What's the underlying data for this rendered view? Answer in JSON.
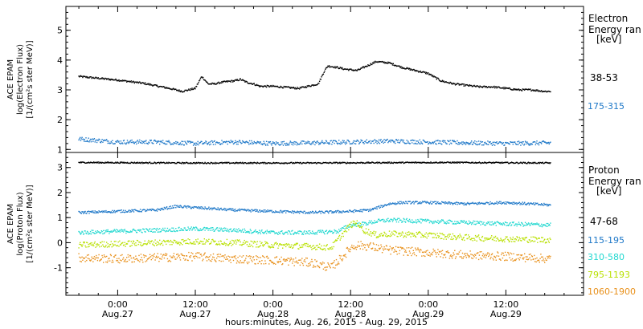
{
  "chart_data": [
    {
      "type": "scatter",
      "ylabel": [
        "ACE EPAM",
        "log(Electron Flux)",
        "[1/(cm²s ster MeV)]"
      ],
      "legend_title": [
        "Electron",
        "Energy ran",
        "[keV]"
      ],
      "legend_placement": "right",
      "ylim": [
        0.9,
        5.8
      ],
      "yticks": [
        1,
        2,
        3,
        4,
        5
      ],
      "series": [
        {
          "name": "38-53",
          "color": "#000000",
          "x": [
            -6,
            0,
            4,
            8,
            10,
            12,
            13,
            14,
            15,
            16,
            17,
            18,
            19,
            20,
            21,
            22,
            24,
            28,
            31,
            32,
            32.5,
            34,
            35,
            37,
            38,
            40,
            42,
            44,
            48,
            50,
            52,
            54,
            56,
            58,
            60,
            62,
            64,
            66,
            67
          ],
          "y": [
            3.45,
            3.33,
            3.22,
            3.05,
            2.95,
            3.05,
            3.45,
            3.2,
            3.2,
            3.25,
            3.28,
            3.3,
            3.35,
            3.25,
            3.2,
            3.12,
            3.12,
            3.05,
            3.2,
            3.65,
            3.8,
            3.75,
            3.7,
            3.65,
            3.75,
            3.95,
            3.9,
            3.75,
            3.55,
            3.3,
            3.2,
            3.15,
            3.1,
            3.1,
            3.05,
            3.0,
            3.0,
            2.95,
            2.95
          ]
        },
        {
          "name": "175-315",
          "color": "#1e78c8",
          "x": [
            -6,
            0,
            6,
            12,
            18,
            24,
            30,
            36,
            42,
            48,
            54,
            60,
            67
          ],
          "y": [
            1.35,
            1.25,
            1.25,
            1.2,
            1.25,
            1.2,
            1.22,
            1.25,
            1.28,
            1.25,
            1.22,
            1.2,
            1.22
          ]
        }
      ]
    },
    {
      "type": "scatter",
      "xlabel": "hours:minutes, Aug. 26, 2015 - Aug. 29, 2015",
      "ylabel": [
        "ACE EPAM",
        "log(Proton Flux)",
        "[1/(cm²s ster MeV)]"
      ],
      "legend_title": [
        "Proton",
        "Energy ran",
        "[keV]"
      ],
      "legend_placement": "right",
      "xlim": [
        -8,
        72
      ],
      "x_ticks": [
        {
          "x": 0,
          "time": "0:00",
          "date": "Aug.27"
        },
        {
          "x": 12,
          "time": "12:00",
          "date": "Aug.27"
        },
        {
          "x": 24,
          "time": "0:00",
          "date": "Aug.28"
        },
        {
          "x": 36,
          "time": "12:00",
          "date": "Aug.28"
        },
        {
          "x": 48,
          "time": "0:00",
          "date": "Aug.29"
        },
        {
          "x": 60,
          "time": "12:00",
          "date": "Aug.29"
        }
      ],
      "ylim": [
        -2.1,
        3.6
      ],
      "yticks": [
        -1,
        0,
        1,
        2,
        3
      ],
      "series": [
        {
          "name": "47-68",
          "color": "#000000",
          "x": [
            -6,
            10,
            30,
            50,
            67
          ],
          "y": [
            3.2,
            3.18,
            3.18,
            3.2,
            3.18
          ]
        },
        {
          "name": "115-195",
          "color": "#1e78c8",
          "x": [
            -6,
            0,
            6,
            9,
            12,
            18,
            24,
            30,
            36,
            39,
            42,
            44,
            48,
            54,
            60,
            67
          ],
          "y": [
            1.2,
            1.25,
            1.3,
            1.45,
            1.4,
            1.3,
            1.25,
            1.2,
            1.25,
            1.3,
            1.55,
            1.6,
            1.6,
            1.55,
            1.6,
            1.5
          ]
        },
        {
          "name": "310-580",
          "color": "#22d8d0",
          "x": [
            -6,
            0,
            6,
            12,
            18,
            24,
            30,
            34,
            36,
            38,
            40,
            42,
            48,
            54,
            60,
            67
          ],
          "y": [
            0.4,
            0.45,
            0.5,
            0.55,
            0.5,
            0.4,
            0.4,
            0.45,
            0.7,
            0.75,
            0.85,
            0.9,
            0.85,
            0.8,
            0.75,
            0.7
          ]
        },
        {
          "name": "795-1193",
          "color": "#b8e000",
          "x": [
            -6,
            0,
            6,
            12,
            18,
            24,
            30,
            33,
            35,
            36,
            37,
            38,
            40,
            42,
            48,
            54,
            60,
            67
          ],
          "y": [
            -0.1,
            -0.05,
            0.0,
            0.05,
            0.0,
            -0.1,
            -0.15,
            -0.2,
            0.4,
            0.7,
            0.8,
            0.5,
            0.3,
            0.35,
            0.3,
            0.2,
            0.15,
            0.1
          ]
        },
        {
          "name": "1060-1900",
          "color": "#e8901a",
          "x": [
            -6,
            0,
            6,
            12,
            18,
            24,
            30,
            33,
            35,
            36,
            37,
            39,
            42,
            48,
            54,
            60,
            67
          ],
          "y": [
            -0.6,
            -0.65,
            -0.6,
            -0.55,
            -0.65,
            -0.7,
            -0.8,
            -1.0,
            -0.5,
            -0.2,
            -0.1,
            -0.15,
            -0.3,
            -0.4,
            -0.5,
            -0.55,
            -0.65
          ]
        }
      ]
    }
  ]
}
